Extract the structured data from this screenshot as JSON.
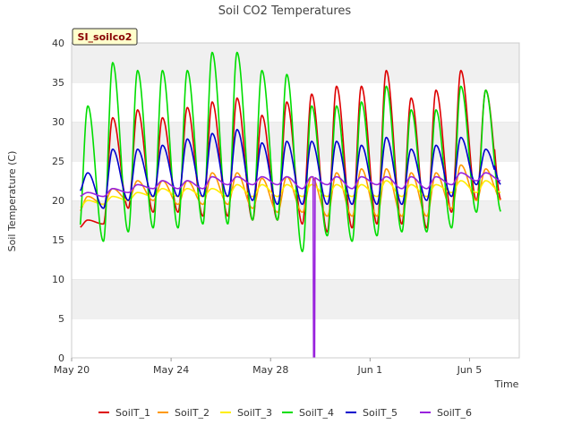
{
  "chart_data": {
    "type": "line",
    "title": "Soil CO2 Temperatures",
    "site_badge": "SI_soilco2",
    "xlabel": "Time",
    "ylabel": "Soil Temperature (C)",
    "ylim": [
      0,
      40
    ],
    "yticks": [
      0,
      5,
      10,
      15,
      20,
      25,
      30,
      35,
      40
    ],
    "xlim_days": [
      0,
      18
    ],
    "xticks": [
      {
        "label": "May 20",
        "day": 0
      },
      {
        "label": "May 24",
        "day": 4
      },
      {
        "label": "May 28",
        "day": 8
      },
      {
        "label": "Jun 1",
        "day": 12
      },
      {
        "label": "Jun 5",
        "day": 16
      }
    ],
    "grid": "horizontal bands",
    "legend_position": "bottom",
    "series": [
      {
        "name": "SoilT_1",
        "color": "#dd0000",
        "peaks": [
          17.5,
          30.5,
          31.5,
          30.5,
          31.8,
          32.5,
          33,
          30.8,
          32.5,
          33.5,
          34.5,
          34.5,
          36.5,
          33,
          34,
          36.5,
          34
        ],
        "troughs": [
          16.5,
          17,
          19,
          18.5,
          18.5,
          18,
          18,
          17.5,
          17.5,
          17,
          16,
          16.5,
          17,
          17,
          16.5,
          18.5,
          20
        ]
      },
      {
        "name": "SoilT_2",
        "color": "#ff9900",
        "peaks": [
          20.5,
          21.5,
          22.5,
          22.5,
          22.5,
          23.5,
          23.5,
          22.8,
          23,
          23,
          23.5,
          24,
          24,
          23.5,
          23.5,
          24.5,
          24
        ],
        "troughs": [
          18.5,
          19.5,
          20,
          20,
          19.5,
          19.5,
          19.5,
          19,
          18.5,
          18.5,
          18,
          18,
          18,
          18,
          18,
          19,
          20
        ]
      },
      {
        "name": "SoilT_3",
        "color": "#ffee00",
        "peaks": [
          20,
          20.5,
          21,
          21.5,
          21.5,
          21.5,
          22,
          22,
          22,
          22,
          22,
          22,
          22.5,
          22,
          22,
          22.5,
          22.5
        ],
        "troughs": [
          19,
          19.5,
          20,
          20.5,
          20.5,
          20.5,
          20.5,
          20.5,
          20.5,
          20.5,
          20.5,
          20.5,
          20.5,
          20.5,
          20.5,
          21,
          21
        ]
      },
      {
        "name": "SoilT_4",
        "color": "#00dd00",
        "peaks": [
          32,
          37.5,
          36.5,
          36.5,
          36.5,
          38.8,
          38.8,
          36.5,
          36,
          32,
          32,
          32.5,
          34.5,
          31.5,
          31.5,
          34.5,
          34
        ],
        "troughs": [
          15.5,
          14.8,
          16,
          16.5,
          16.5,
          17,
          17,
          17.5,
          17.5,
          13.5,
          15.5,
          14.8,
          15.5,
          16,
          16,
          16.5,
          18.5
        ]
      },
      {
        "name": "SoilT_5",
        "color": "#0000cc",
        "peaks": [
          23.5,
          26.5,
          26.5,
          27,
          27.8,
          28.5,
          29,
          27.3,
          27.5,
          27.5,
          27.5,
          27,
          28,
          26.5,
          27,
          28,
          26.5
        ],
        "troughs": [
          21,
          19,
          20,
          20.5,
          20.5,
          20.5,
          20.5,
          20,
          19.5,
          19.5,
          19.5,
          19.5,
          19.5,
          19.5,
          20,
          20.5,
          22
        ]
      },
      {
        "name": "SoilT_6",
        "color": "#9922dd",
        "peaks": [
          21,
          21.5,
          22,
          22.5,
          22.5,
          23,
          23,
          23,
          23,
          23,
          23,
          23,
          23,
          23,
          23,
          23.5,
          23.5
        ],
        "troughs": [
          20.5,
          20.5,
          21,
          21.5,
          21.5,
          21.5,
          22,
          22,
          22,
          21.5,
          22,
          21.5,
          22,
          21.5,
          21.5,
          22,
          22.5
        ],
        "dropout": {
          "day": 9.75,
          "value": 0
        }
      }
    ]
  }
}
